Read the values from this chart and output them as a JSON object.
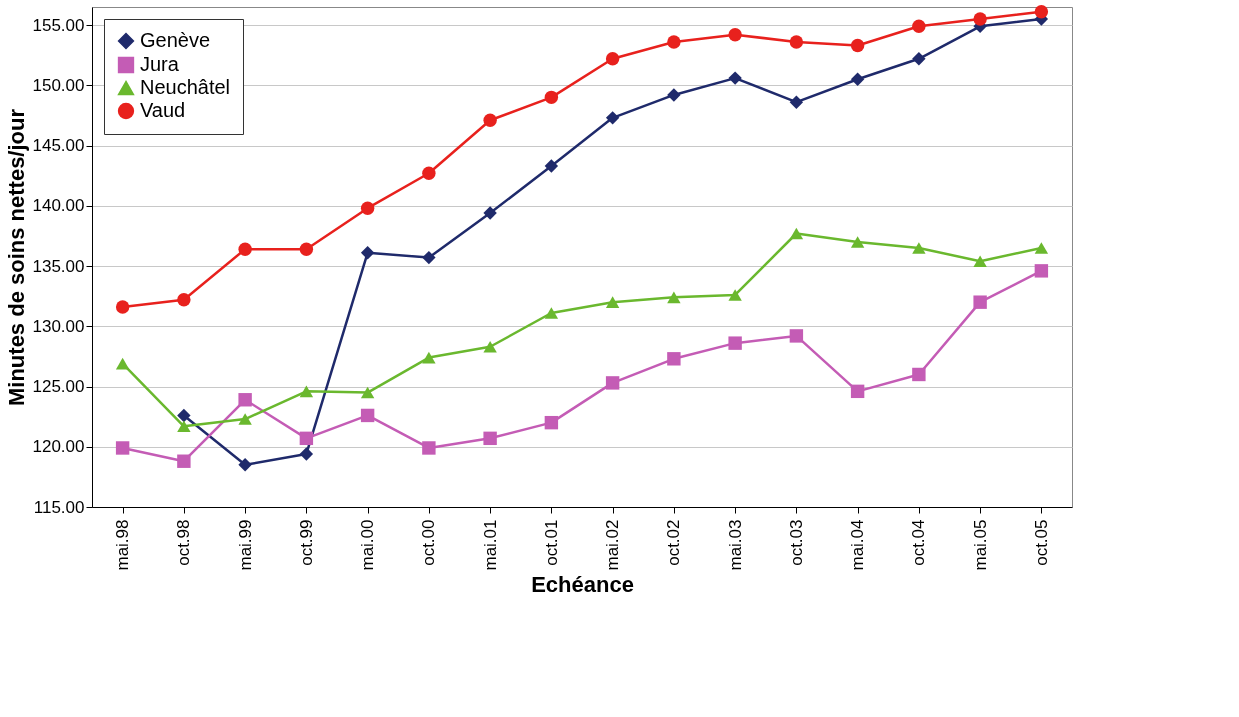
{
  "chart_data": {
    "type": "line",
    "xlabel": "Echéance",
    "ylabel": "Minutes de soins nettes/jour",
    "categories": [
      "mai.98",
      "oct.98",
      "mai.99",
      "oct.99",
      "mai.00",
      "oct.00",
      "mai.01",
      "oct.01",
      "mai.02",
      "oct.02",
      "mai.03",
      "oct.03",
      "mai.04",
      "oct.04",
      "mai.05",
      "oct.05"
    ],
    "series": [
      {
        "name": "Genève",
        "color": "#1f2a6b",
        "marker": "diamond",
        "values": [
          null,
          122.6,
          118.5,
          119.4,
          136.1,
          135.7,
          139.4,
          143.3,
          147.3,
          149.2,
          150.6,
          148.6,
          150.5,
          152.2,
          154.9,
          155.5
        ]
      },
      {
        "name": "Jura",
        "color": "#c45cb5",
        "marker": "square",
        "values": [
          119.9,
          118.8,
          123.9,
          120.7,
          122.6,
          119.9,
          120.7,
          122.0,
          125.3,
          127.3,
          128.6,
          129.2,
          124.6,
          126.0,
          132.0,
          134.6
        ]
      },
      {
        "name": "Neuchâtel",
        "color": "#6ab82e",
        "marker": "triangle",
        "values": [
          126.9,
          121.7,
          122.3,
          124.6,
          124.5,
          127.4,
          128.3,
          131.1,
          132.0,
          132.4,
          132.6,
          137.7,
          137.0,
          136.5,
          135.4,
          136.5
        ]
      },
      {
        "name": "Vaud",
        "color": "#e8211d",
        "marker": "circle",
        "values": [
          131.6,
          132.2,
          136.4,
          136.4,
          139.8,
          142.7,
          147.1,
          149.0,
          152.2,
          153.6,
          154.2,
          153.6,
          153.3,
          154.9,
          155.5,
          156.1
        ]
      }
    ],
    "ylim": [
      115,
      156.5
    ],
    "yticks": [
      {
        "value": 115,
        "label": "115.00"
      },
      {
        "value": 120,
        "label": "120.00"
      },
      {
        "value": 125,
        "label": "125.00"
      },
      {
        "value": 130,
        "label": "130.00"
      },
      {
        "value": 135,
        "label": "135.00"
      },
      {
        "value": 140,
        "label": "140.00"
      },
      {
        "value": 145,
        "label": "145.00"
      },
      {
        "value": 150,
        "label": "150.00"
      },
      {
        "value": 155,
        "label": "155.00"
      }
    ],
    "grid": "y",
    "legend": "top left",
    "line_style": "solid"
  }
}
